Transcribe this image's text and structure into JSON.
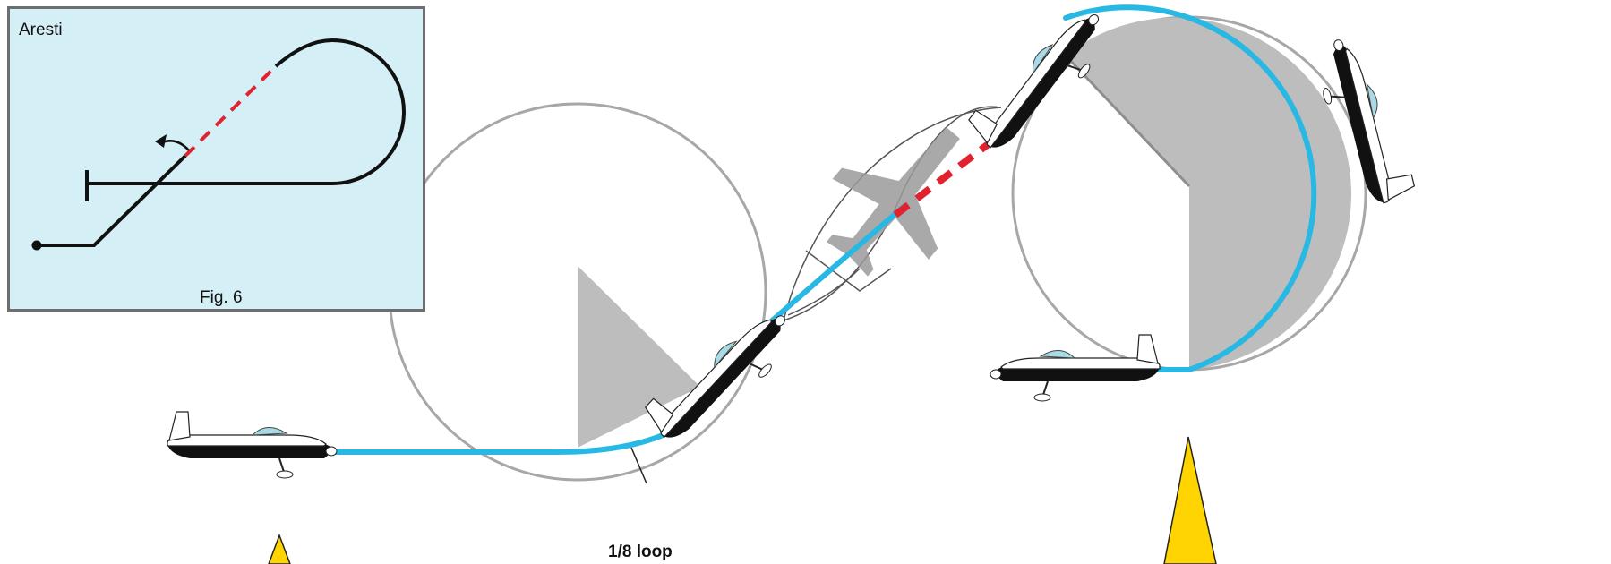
{
  "inset": {
    "title": "Aresti",
    "caption": "Fig. 6"
  },
  "labels": {
    "maneuver": "1/8 loop"
  },
  "colors": {
    "flight_path": "#27b8e3",
    "snap_roll_dash": "#e0232f",
    "inset_background": "#d4eff6",
    "loop_sector": "#bcbdbc",
    "loop_outline": "#a7a7a7",
    "pointer": "#ffd400"
  },
  "icons": [
    "aircraft-side-view-icon",
    "aircraft-top-view-icon",
    "pointer-arrow-icon"
  ]
}
